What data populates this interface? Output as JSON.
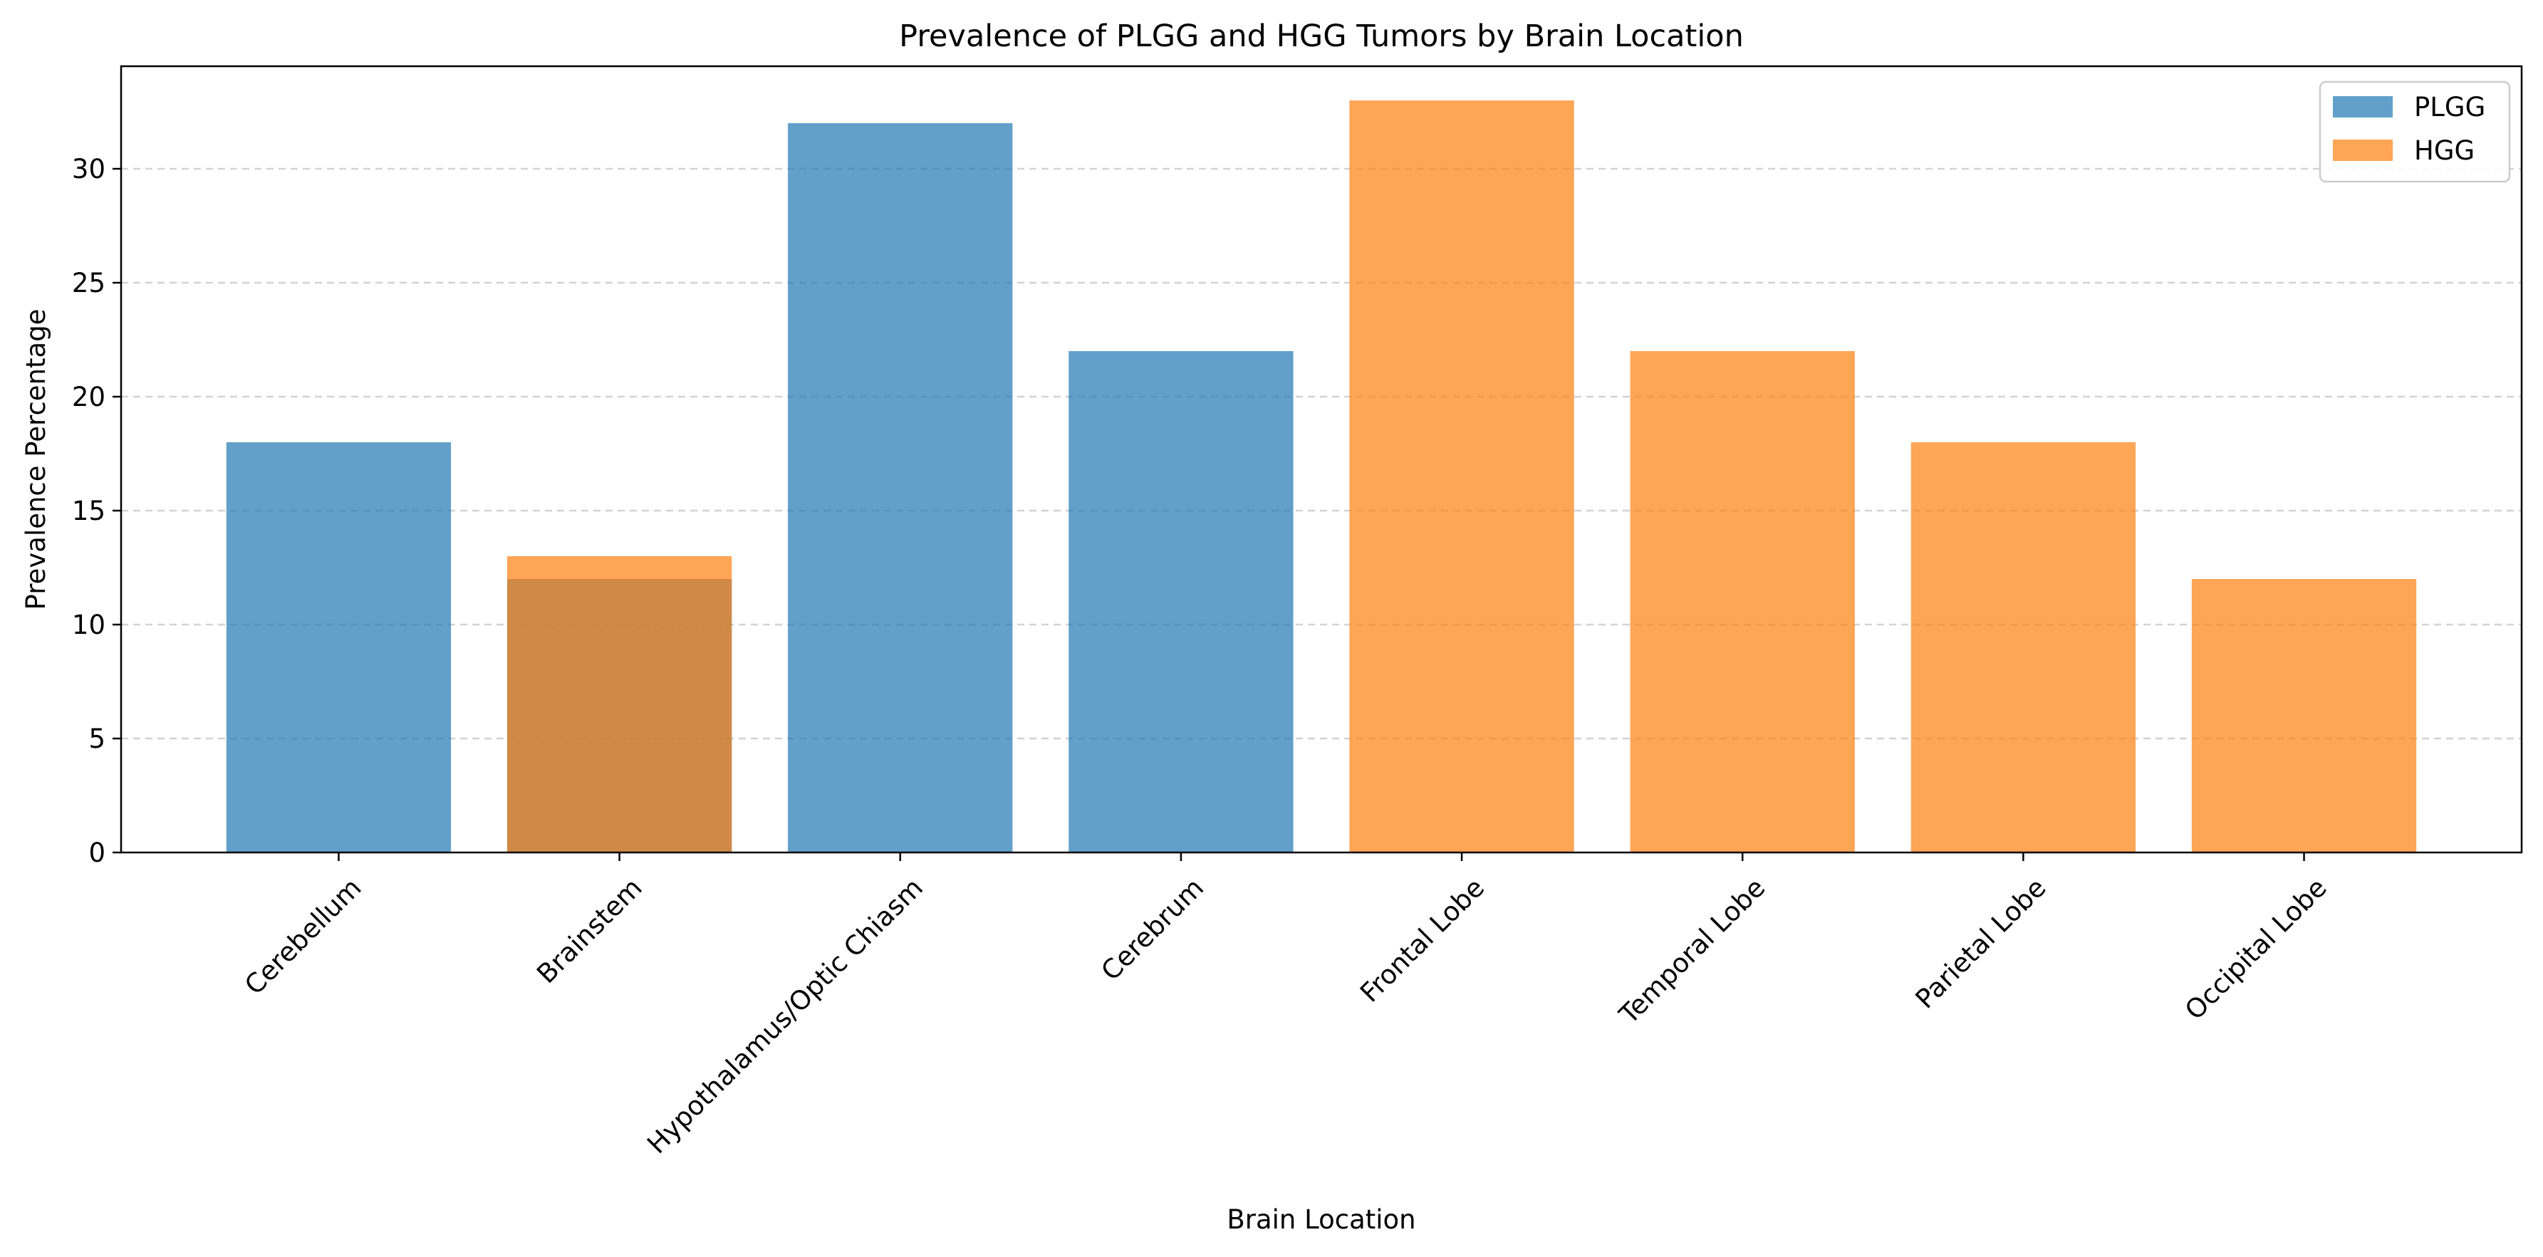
{
  "chart_data": {
    "type": "bar",
    "title": "Prevalence of PLGG and HGG Tumors by Brain Location",
    "xlabel": "Brain Location",
    "ylabel": "Prevalence Percentage",
    "categories": [
      "Cerebellum",
      "Brainstem",
      "Hypothalamus/Optic Chiasm",
      "Cerebrum",
      "Frontal Lobe",
      "Temporal Lobe",
      "Parietal Lobe",
      "Occipital Lobe"
    ],
    "series": [
      {
        "name": "PLGG",
        "color": "#1f77b4",
        "values": [
          18,
          12,
          32,
          22,
          null,
          null,
          null,
          null
        ]
      },
      {
        "name": "HGG",
        "color": "#ff7f0e",
        "values": [
          null,
          13,
          null,
          null,
          33,
          22,
          18,
          12
        ]
      }
    ],
    "ylim": [
      0,
      34.5
    ],
    "yticks": [
      0,
      5,
      10,
      15,
      20,
      25,
      30
    ],
    "grid": "y-dashed",
    "legend_position": "top-right",
    "bar_opacity": 0.7
  }
}
